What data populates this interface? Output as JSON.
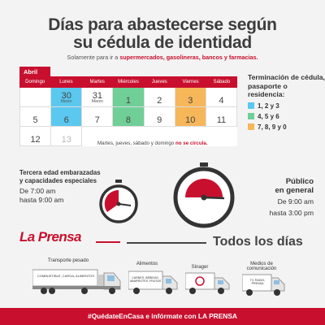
{
  "title_line1": "Días para abastecerse según",
  "title_line2": "su cédula de identidad",
  "subtitle_prefix": "Solamente para ir a",
  "subtitle_highlight": "supermercados, gasolineras, bancos y farmacias.",
  "calendar": {
    "month": "Abril",
    "weekdays": [
      "Domingo",
      "Lunes",
      "Martes",
      "Miércoles",
      "Jueves",
      "Viernes",
      "Sábado"
    ],
    "row1": [
      {
        "n": "",
        "sub": "",
        "color": ""
      },
      {
        "n": "30",
        "sub": "Marzo",
        "color": "blue"
      },
      {
        "n": "31",
        "sub": "Marzo",
        "color": ""
      },
      {
        "n": "1",
        "sub": "",
        "color": "green"
      },
      {
        "n": "2",
        "sub": "",
        "color": ""
      },
      {
        "n": "3",
        "sub": "",
        "color": "orange"
      },
      {
        "n": "4",
        "sub": "",
        "color": ""
      }
    ],
    "row2": [
      {
        "n": "5",
        "sub": "",
        "color": ""
      },
      {
        "n": "6",
        "sub": "",
        "color": "blue"
      },
      {
        "n": "7",
        "sub": "",
        "color": ""
      },
      {
        "n": "8",
        "sub": "",
        "color": "green"
      },
      {
        "n": "9",
        "sub": "",
        "color": ""
      },
      {
        "n": "10",
        "sub": "",
        "color": "orange"
      },
      {
        "n": "11",
        "sub": "",
        "color": ""
      }
    ],
    "row3": [
      {
        "n": "12",
        "sub": "",
        "color": ""
      },
      {
        "n": "13",
        "sub": "",
        "color": "faded"
      }
    ],
    "note_prefix": "Martes, jueves, sábado y domingo",
    "note_highlight": "no se circula."
  },
  "legend": {
    "title": "Terminación de cédula, pasaporte o residencia:",
    "items": [
      {
        "label": "1, 2 y 3",
        "color": "#5bc8ef"
      },
      {
        "label": "4, 5 y 6",
        "color": "#6fcf97"
      },
      {
        "label": "7, 8, 9 y 0",
        "color": "#f6b65a"
      }
    ]
  },
  "schedule_left": {
    "label": "Tercera edad embarazadas y capacidades especiales",
    "from": "De 7:00 am",
    "to": "hasta 9:00 am"
  },
  "schedule_right": {
    "label1": "Público",
    "label2": "en general",
    "from": "De 9:00 am",
    "to": "hasta 3:00 pm"
  },
  "brand": "La Prensa",
  "todos": "Todos los días",
  "trucks": [
    {
      "label": "Transporte pesado",
      "text": "COMBUSTIBLE, CARGA, ALIMENTOS"
    },
    {
      "label": "Alimentos",
      "text": "CARNES, BEBIDAS, ABARROTES, FRUTAS"
    },
    {
      "label": "Sinager",
      "text": ""
    },
    {
      "label": "Medios de comunicación",
      "text": "TV, RADIO, PRENSA"
    }
  ],
  "footer": "#QuédateEnCasa e infórmate con LA PRENSA",
  "colors": {
    "accent": "#c8102e",
    "blue": "#5bc8ef",
    "green": "#6fcf97",
    "orange": "#f6b65a"
  }
}
